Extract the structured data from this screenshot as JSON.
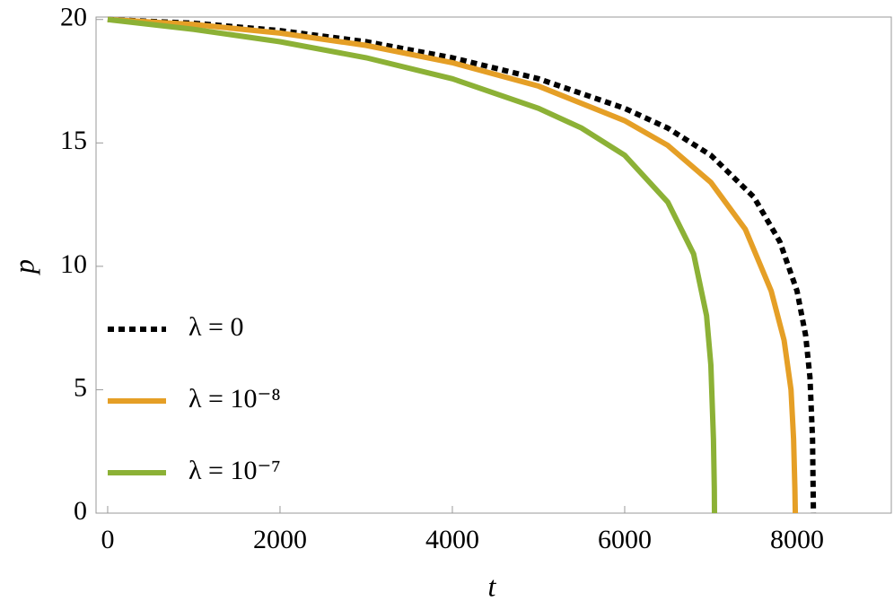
{
  "chart_data": {
    "type": "line",
    "x_label": "t",
    "y_label": "p",
    "xlim": [
      -135,
      9094
    ],
    "ylim": [
      0,
      20.1
    ],
    "xticks": [
      0,
      2000,
      4000,
      6000,
      8000
    ],
    "yticks": [
      0,
      5,
      10,
      15,
      20
    ],
    "legend_position": "left",
    "series": [
      {
        "name": "λ = 0",
        "color": "#000000",
        "line_style": "dotted",
        "x": [
          0,
          1000,
          2000,
          3000,
          4000,
          5000,
          6000,
          6500,
          7000,
          7500,
          7800,
          8000,
          8100,
          8150,
          8180,
          8190
        ],
        "values": [
          20,
          19.85,
          19.55,
          19.1,
          18.45,
          17.6,
          16.4,
          15.6,
          14.5,
          12.8,
          11,
          9,
          7.2,
          5.5,
          3,
          0
        ]
      },
      {
        "name": "λ = 10⁻⁸",
        "color": "#e59f26",
        "line_style": "solid",
        "x": [
          0,
          1000,
          2000,
          3000,
          4000,
          5000,
          6000,
          6500,
          7000,
          7400,
          7700,
          7850,
          7930,
          7960,
          7975,
          7980
        ],
        "values": [
          20,
          19.8,
          19.45,
          18.95,
          18.25,
          17.3,
          15.9,
          14.9,
          13.4,
          11.5,
          9,
          7,
          5,
          3,
          1,
          0
        ]
      },
      {
        "name": "λ = 10⁻⁷",
        "color": "#8cb136",
        "line_style": "solid",
        "x": [
          0,
          1000,
          2000,
          3000,
          4000,
          5000,
          5500,
          6000,
          6500,
          6800,
          6950,
          7000,
          7030,
          7040,
          7042
        ],
        "values": [
          20,
          19.6,
          19.1,
          18.45,
          17.6,
          16.4,
          15.6,
          14.5,
          12.6,
          10.5,
          8,
          6,
          3,
          1,
          0
        ]
      }
    ]
  }
}
